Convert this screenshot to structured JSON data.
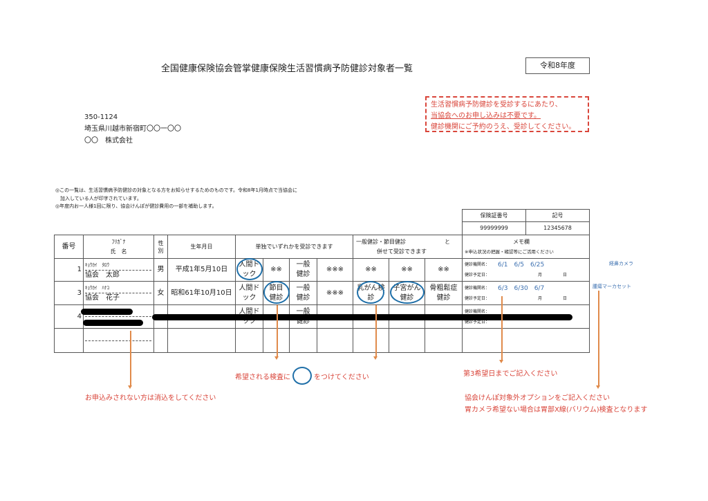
{
  "title": "全国健康保険協会管掌健康保険生活習慣病予防健診対象者一覧",
  "fiscal_year": "令和8年度",
  "notice": {
    "line1": "生活習慣病予防健診を受診するにあたり、",
    "line2": "当協会へのお申し込みは不要です。",
    "line3": "健診機関にご予約のうえ、受診してください。"
  },
  "address": {
    "postal": "350-1124",
    "street": "埼玉県川越市新宿町〇〇一〇〇",
    "company": "〇〇　株式会社"
  },
  "notes": [
    "◎この一覧は、生活習慣病予防健診の対象となる方をお知らせするためのものです。令和8年1月時点で当協会に",
    "　加入している人が印字されています。",
    "◎年度内お一人様1回に限り、協会けんぽが健診費用の一部を補助します。"
  ],
  "insurance": {
    "number_label": "保険証番号",
    "symbol_label": "記号",
    "number": "99999999",
    "symbol": "12345678"
  },
  "headers": {
    "no": "番号",
    "kana": "ﾌﾘｶﾞﾅ",
    "name": "氏　名",
    "sex": "性別",
    "birth": "生年月日",
    "single": "単独でいずれかを受診できます",
    "combo1": "一般健診・節目健診　　　　　　　と",
    "combo2": "併せて受診できます",
    "memo": "メモ欄",
    "memo_sub": "※申込状況の把握・確認等にご活用ください"
  },
  "rows": [
    {
      "no": "1",
      "kana": "ｷｮｳｶｲ　ﾀﾛｳ",
      "name": "協会　太郎",
      "sex": "男",
      "birth": "平成1年5月10日",
      "c1": "人間ドック",
      "c2": "※※",
      "c3": "一般健診",
      "c4": "※※※",
      "c5": "※※",
      "c6": "※※",
      "c7": "※※",
      "inst_label": "健診機関名：",
      "dates": "6/1　6/5　6/25",
      "plan_label": "健診予定日：",
      "month": "月",
      "day": "日",
      "side": "経鼻カメラ"
    },
    {
      "no": "3",
      "kana": "ｷｮｳｶｲ　ﾊﾅｺ",
      "name": "協会　花子",
      "sex": "女",
      "birth": "昭和61年10月10日",
      "c1": "人間ドック",
      "c2": "節目健診",
      "c3": "一般健診",
      "c4": "※※※",
      "c5": "乳がん検診",
      "c6": "子宮がん健診",
      "c7": "骨粗鬆症健診",
      "inst_label": "健診機関名：",
      "dates": "6/3　6/30　6/7",
      "plan_label": "健診予定日：",
      "month": "月",
      "day": "日",
      "side": "腫瘍マーカセット"
    },
    {
      "no": "4",
      "c1": "人間ドック",
      "c3": "一般健診",
      "inst_label": "健診機関名：",
      "plan_label": "健診予定日："
    }
  ],
  "annotations": {
    "circle_pre": "希望される検査に",
    "circle_post": "をつけてください",
    "third": "第3希望日までご記入ください",
    "erase": "お申込みされない方は消込をしてください",
    "option1": "協会けんぽ対象外オプションをご記入ください",
    "option2": "胃カメラ希望ない場合は胃部X線(バリウム)検査となります"
  }
}
